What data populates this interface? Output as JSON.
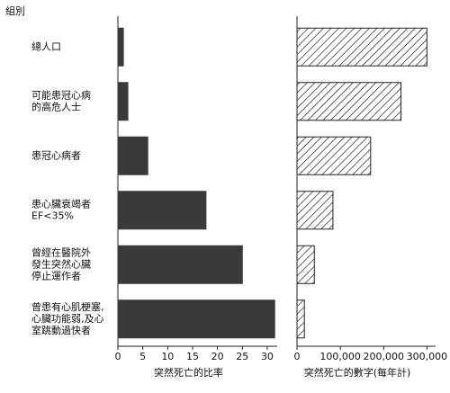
{
  "chart_data": [
    {
      "type": "barh",
      "y_label": "組別",
      "xlabel": "突然死亡的比率",
      "categories": [
        [
          "總人口"
        ],
        [
          "可能患冠心病",
          "的高危人士"
        ],
        [
          "患冠心病者"
        ],
        [
          "患心臟衰竭者",
          "EF<35%"
        ],
        [
          "曾經在醫院外",
          "發生突然心臟",
          "停止運作者"
        ],
        [
          "曾患有心肌梗塞,",
          "心臟功能弱,及心",
          "室跳動過快者"
        ]
      ],
      "values": [
        1.1,
        2,
        6,
        17.7,
        25,
        31.5
      ],
      "color": "#3a3a3a",
      "fill_style": "solid",
      "xlim": [
        0,
        32
      ],
      "xticks": [
        0,
        5,
        10,
        15,
        20,
        25,
        30
      ]
    },
    {
      "type": "barh",
      "xlabel": "突然死亡的數字(每年計)",
      "values": [
        300000,
        240000,
        170000,
        83000,
        40000,
        17000
      ],
      "color": "#222222",
      "fill_style": "hatch",
      "xlim": [
        0,
        320000
      ],
      "xticks": [
        0,
        {
          "value": 100000,
          "label": "100,000"
        },
        {
          "value": 200000,
          "label": "200,000"
        },
        {
          "value": 300000,
          "label": "300,000"
        }
      ]
    }
  ]
}
